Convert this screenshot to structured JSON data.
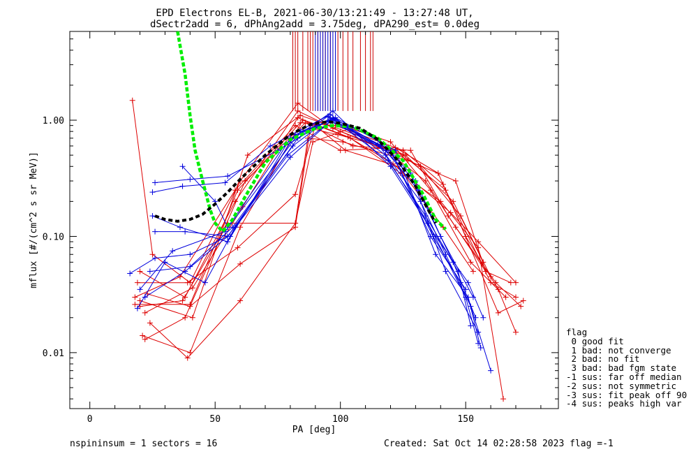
{
  "chart_data": {
    "type": "scatter",
    "title": "EPD Electrons EL-B, 2021-06-30/13:21:49 - 13:27:48 UT,",
    "subtitle": "dSectr2add = 6, dPhAng2add = 3.75deg, dPA290_est=    0.0deg",
    "xlabel": "PA [deg]",
    "ylabel": "mflux [#/(cm^2 s sr MeV)]",
    "xlim": [
      -8,
      187
    ],
    "ylim": [
      0.0033,
      5.8
    ],
    "yscale": "log",
    "x_ticks": [
      {
        "v": 0,
        "label": "0"
      },
      {
        "v": 50,
        "label": "50"
      },
      {
        "v": 100,
        "label": "100"
      },
      {
        "v": 150,
        "label": "150"
      }
    ],
    "y_ticks": [
      {
        "v": 0.01,
        "label": "0.01"
      },
      {
        "v": 0.1,
        "label": "0.10"
      },
      {
        "v": 1.0,
        "label": "1.00"
      }
    ],
    "blue_curves": [
      [
        [
          26,
          0.29
        ],
        [
          40,
          0.31
        ],
        [
          55,
          0.33
        ],
        [
          75,
          0.55
        ],
        [
          97,
          1.05
        ],
        [
          115,
          0.62
        ],
        [
          132,
          0.2
        ],
        [
          142,
          0.07
        ],
        [
          152,
          0.025
        ],
        [
          160,
          0.007
        ]
      ],
      [
        [
          25,
          0.24
        ],
        [
          37,
          0.27
        ],
        [
          54,
          0.29
        ],
        [
          72,
          0.6
        ],
        [
          96,
          1.12
        ],
        [
          118,
          0.5
        ],
        [
          135,
          0.13
        ],
        [
          150,
          0.03
        ],
        [
          155,
          0.012
        ]
      ],
      [
        [
          37,
          0.4
        ],
        [
          50,
          0.2
        ],
        [
          55,
          0.12
        ],
        [
          78,
          0.62
        ],
        [
          97,
          1.2
        ],
        [
          120,
          0.4
        ],
        [
          138,
          0.1
        ],
        [
          151,
          0.04
        ],
        [
          157,
          0.02
        ]
      ],
      [
        [
          25,
          0.15
        ],
        [
          36,
          0.12
        ],
        [
          55,
          0.09
        ],
        [
          80,
          0.7
        ],
        [
          96,
          1.0
        ],
        [
          116,
          0.6
        ],
        [
          130,
          0.3
        ],
        [
          140,
          0.1
        ],
        [
          153,
          0.03
        ]
      ],
      [
        [
          26,
          0.11
        ],
        [
          38,
          0.11
        ],
        [
          56,
          0.1
        ],
        [
          82,
          0.75
        ],
        [
          98,
          1.05
        ],
        [
          122,
          0.55
        ],
        [
          138,
          0.07
        ],
        [
          151,
          0.03
        ],
        [
          156,
          0.011
        ]
      ],
      [
        [
          16,
          0.048
        ],
        [
          26,
          0.065
        ],
        [
          40,
          0.07
        ],
        [
          55,
          0.1
        ],
        [
          79,
          0.5
        ],
        [
          96,
          0.98
        ],
        [
          118,
          0.55
        ],
        [
          131,
          0.25
        ],
        [
          145,
          0.06
        ],
        [
          154,
          0.02
        ]
      ],
      [
        [
          19,
          0.024
        ],
        [
          30,
          0.06
        ],
        [
          46,
          0.04
        ],
        [
          58,
          0.12
        ],
        [
          80,
          0.48
        ],
        [
          97,
          1.02
        ],
        [
          119,
          0.45
        ],
        [
          134,
          0.15
        ],
        [
          147,
          0.05
        ],
        [
          152,
          0.017
        ]
      ],
      [
        [
          22,
          0.03
        ],
        [
          38,
          0.05
        ],
        [
          55,
          0.1
        ],
        [
          83,
          0.7
        ],
        [
          95,
          1.08
        ],
        [
          121,
          0.5
        ],
        [
          136,
          0.1
        ],
        [
          150,
          0.035
        ]
      ],
      [
        [
          24,
          0.05
        ],
        [
          40,
          0.055
        ],
        [
          57,
          0.12
        ],
        [
          81,
          0.6
        ],
        [
          96,
          1.05
        ],
        [
          114,
          0.7
        ],
        [
          128,
          0.35
        ],
        [
          142,
          0.05
        ],
        [
          155,
          0.015
        ]
      ],
      [
        [
          20,
          0.035
        ],
        [
          33,
          0.075
        ],
        [
          54,
          0.11
        ],
        [
          84,
          0.8
        ],
        [
          97,
          1.0
        ],
        [
          120,
          0.55
        ],
        [
          137,
          0.1
        ],
        [
          148,
          0.04
        ]
      ]
    ],
    "red_curves": [
      [
        [
          17,
          1.48
        ],
        [
          25,
          0.07
        ],
        [
          40,
          0.04
        ],
        [
          60,
          0.3
        ],
        [
          83,
          1.4
        ],
        [
          97,
          0.85
        ],
        [
          115,
          0.6
        ],
        [
          125,
          0.5
        ],
        [
          142,
          0.25
        ],
        [
          160,
          0.04
        ],
        [
          170,
          0.03
        ]
      ],
      [
        [
          20,
          0.05
        ],
        [
          38,
          0.03
        ],
        [
          58,
          0.2
        ],
        [
          83,
          1.2
        ],
        [
          100,
          0.8
        ],
        [
          118,
          0.55
        ],
        [
          134,
          0.3
        ],
        [
          146,
          0.12
        ],
        [
          162,
          0.04
        ],
        [
          172,
          0.025
        ]
      ],
      [
        [
          21,
          0.014
        ],
        [
          40,
          0.01
        ],
        [
          60,
          0.12
        ],
        [
          85,
          1.0
        ],
        [
          104,
          0.7
        ],
        [
          124,
          0.35
        ],
        [
          140,
          0.2
        ],
        [
          155,
          0.08
        ],
        [
          165,
          0.004
        ]
      ],
      [
        [
          22,
          0.013
        ],
        [
          38,
          0.02
        ],
        [
          62,
          0.3
        ],
        [
          86,
          0.95
        ],
        [
          105,
          0.6
        ],
        [
          128,
          0.55
        ],
        [
          143,
          0.15
        ],
        [
          158,
          0.05
        ],
        [
          168,
          0.04
        ]
      ],
      [
        [
          18,
          0.03
        ],
        [
          36,
          0.045
        ],
        [
          58,
          0.25
        ],
        [
          82,
          0.9
        ],
        [
          100,
          0.55
        ],
        [
          122,
          0.58
        ],
        [
          139,
          0.35
        ],
        [
          150,
          0.1
        ],
        [
          163,
          0.035
        ],
        [
          170,
          0.015
        ]
      ],
      [
        [
          20,
          0.028
        ],
        [
          41,
          0.02
        ],
        [
          63,
          0.5
        ],
        [
          84,
          1.1
        ],
        [
          106,
          0.75
        ],
        [
          126,
          0.5
        ],
        [
          145,
          0.2
        ],
        [
          157,
          0.06
        ]
      ],
      [
        [
          24,
          0.018
        ],
        [
          39,
          0.009
        ],
        [
          60,
          0.028
        ],
        [
          82,
          0.13
        ],
        [
          89,
          0.65
        ],
        [
          104,
          0.85
        ],
        [
          120,
          0.65
        ],
        [
          136,
          0.25
        ],
        [
          152,
          0.06
        ],
        [
          166,
          0.03
        ]
      ],
      [
        [
          19,
          0.04
        ],
        [
          39,
          0.04
        ],
        [
          59,
          0.08
        ],
        [
          82,
          0.23
        ],
        [
          90,
          0.9
        ],
        [
          102,
          0.55
        ],
        [
          123,
          0.4
        ],
        [
          141,
          0.12
        ],
        [
          153,
          0.05
        ]
      ],
      [
        [
          23,
          0.032
        ],
        [
          40,
          0.025
        ],
        [
          60,
          0.058
        ],
        [
          82,
          0.12
        ],
        [
          88,
          0.85
        ],
        [
          99,
          0.75
        ],
        [
          116,
          0.6
        ],
        [
          132,
          0.4
        ],
        [
          148,
          0.15
        ],
        [
          160,
          0.045
        ]
      ],
      [
        [
          20,
          0.025
        ],
        [
          37,
          0.028
        ],
        [
          55,
          0.13
        ],
        [
          82,
          0.13
        ],
        [
          87,
          0.7
        ],
        [
          101,
          0.65
        ],
        [
          127,
          0.45
        ],
        [
          146,
          0.3
        ],
        [
          158,
          0.05
        ]
      ],
      [
        [
          22,
          0.022
        ],
        [
          41,
          0.036
        ],
        [
          61,
          0.18
        ],
        [
          83,
          1.05
        ],
        [
          103,
          0.72
        ],
        [
          121,
          0.42
        ],
        [
          144,
          0.16
        ],
        [
          155,
          0.09
        ],
        [
          170,
          0.04
        ]
      ],
      [
        [
          18,
          0.026
        ],
        [
          40,
          0.026
        ],
        [
          59,
          0.25
        ],
        [
          84,
          0.95
        ],
        [
          98,
          0.9
        ],
        [
          125,
          0.55
        ],
        [
          141,
          0.28
        ],
        [
          163,
          0.022
        ],
        [
          173,
          0.028
        ]
      ]
    ],
    "vertical_markers": [
      {
        "color": "#cc0000",
        "x": [
          81,
          82,
          83,
          85,
          87,
          88,
          89,
          91,
          92,
          93,
          94,
          96,
          99,
          101,
          103,
          105,
          108,
          110,
          112,
          113
        ]
      },
      {
        "color": "#0000cc",
        "x": [
          90,
          91,
          92,
          93,
          94,
          95,
          96,
          97,
          98
        ]
      }
    ],
    "green_fit": [
      [
        35,
        5.8
      ],
      [
        38,
        2.5
      ],
      [
        40,
        1.1
      ],
      [
        42,
        0.55
      ],
      [
        45,
        0.3
      ],
      [
        48,
        0.17
      ],
      [
        50,
        0.13
      ],
      [
        53,
        0.11
      ],
      [
        57,
        0.14
      ],
      [
        62,
        0.22
      ],
      [
        70,
        0.43
      ],
      [
        80,
        0.68
      ],
      [
        90,
        0.85
      ],
      [
        97,
        0.9
      ],
      [
        105,
        0.88
      ],
      [
        115,
        0.7
      ],
      [
        125,
        0.45
      ],
      [
        133,
        0.23
      ],
      [
        138,
        0.14
      ],
      [
        142,
        0.115
      ]
    ],
    "black_fit": [
      [
        26,
        0.15
      ],
      [
        30,
        0.14
      ],
      [
        35,
        0.135
      ],
      [
        40,
        0.14
      ],
      [
        45,
        0.155
      ],
      [
        50,
        0.19
      ],
      [
        55,
        0.24
      ],
      [
        60,
        0.31
      ],
      [
        70,
        0.5
      ],
      [
        80,
        0.75
      ],
      [
        88,
        0.92
      ],
      [
        95,
        0.97
      ],
      [
        100,
        0.94
      ],
      [
        108,
        0.85
      ],
      [
        115,
        0.68
      ],
      [
        123,
        0.45
      ],
      [
        130,
        0.27
      ],
      [
        135,
        0.17
      ],
      [
        138,
        0.13
      ]
    ]
  },
  "legend": {
    "title": "flag",
    "items": [
      " 0 good fit",
      " 1 bad: not converge",
      " 2 bad: no fit",
      " 3 bad: bad fgm state",
      "-1 sus: far off median",
      "-2 sus: not symmetric",
      "-3 sus: fit peak off 90",
      "-4 sus: peaks high var"
    ]
  },
  "footer": {
    "left": "nspininsum =  1  sectors = 16",
    "right": "Created: Sat Oct 14 02:28:58 2023   flag =-1"
  },
  "colors": {
    "red": "#dd0000",
    "blue": "#0000dd",
    "green": "#00ee00",
    "black": "#000000"
  }
}
